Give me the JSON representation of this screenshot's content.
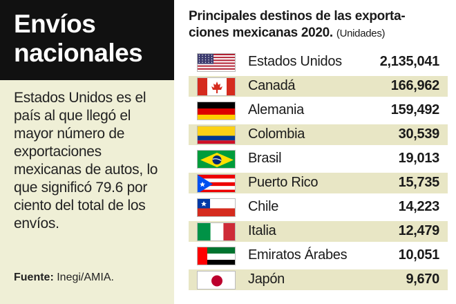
{
  "sidebar": {
    "title_line1": "Envíos",
    "title_line2": "nacionales",
    "description": "Estados Unidos es el país al que llegó el mayor número de exportaciones mexicanas de autos, lo que significó 79.6 por ciento del total de los envíos.",
    "source_label": "Fuente:",
    "source_value": "Inegi/AMIA."
  },
  "chart_data": {
    "type": "table",
    "title": "Principales destinos de las exporta-ciones mexicanas 2020.",
    "title_line1": "Principales destinos de las exporta-",
    "title_line2": "ciones mexicanas 2020.",
    "units": "(Unidades)",
    "categories": [
      "Estados Unidos",
      "Canadá",
      "Alemania",
      "Colombia",
      "Brasil",
      "Puerto Rico",
      "Chile",
      "Italia",
      "Emiratos Árabes",
      "Japón"
    ],
    "values": [
      2135041,
      166962,
      159492,
      30539,
      19013,
      15735,
      14223,
      12479,
      10051,
      9670
    ],
    "value_labels": [
      "2,135,041",
      "166,962",
      "159,492",
      "30,539",
      "19,013",
      "15,735",
      "14,223",
      "12,479",
      "10,051",
      "9,670"
    ],
    "flags": [
      "us-flag-icon",
      "canada-flag-icon",
      "germany-flag-icon",
      "colombia-flag-icon",
      "brazil-flag-icon",
      "puerto-rico-flag-icon",
      "chile-flag-icon",
      "italy-flag-icon",
      "uae-flag-icon",
      "japan-flag-icon"
    ]
  },
  "colors": {
    "background": "#efefd6",
    "title_box": "#111111",
    "row_shade": "#e8e6c5"
  }
}
